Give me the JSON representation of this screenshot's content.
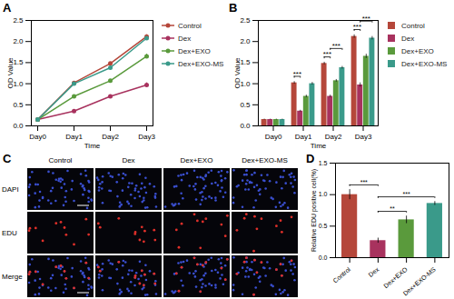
{
  "chart_data": [
    {
      "type": "line",
      "title": "A",
      "x_label": "Time",
      "y_label": "OD Value",
      "categories": [
        "Day0",
        "Day1",
        "Day2",
        "Day3"
      ],
      "ylim": [
        0,
        2.5
      ],
      "yticks": [
        {
          "value": 0,
          "label": "0.0"
        },
        0.5,
        {
          "value": 1,
          "label": "1.0"
        },
        1.5,
        {
          "value": 2,
          "label": "2.0"
        },
        2.5
      ],
      "marker": "circle",
      "legend": "right",
      "series": [
        {
          "name": "Control",
          "color": "#b5473a",
          "values": [
            0.15,
            1.02,
            1.48,
            2.12
          ],
          "errors": [
            0.01,
            0.03,
            0.03,
            0.04
          ]
        },
        {
          "name": "Dex",
          "color": "#a8325e",
          "values": [
            0.15,
            0.35,
            0.7,
            0.97
          ],
          "errors": [
            0.01,
            0.02,
            0.03,
            0.05
          ]
        },
        {
          "name": "Dex+EXO",
          "color": "#5a9a3c",
          "values": [
            0.15,
            0.7,
            1.07,
            1.65
          ],
          "errors": [
            0.01,
            0.03,
            0.03,
            0.05
          ]
        },
        {
          "name": "Dex+EXO-MS",
          "color": "#3a9a8a",
          "values": [
            0.15,
            1.0,
            1.38,
            2.08
          ],
          "errors": [
            0.01,
            0.03,
            0.03,
            0.04
          ]
        }
      ]
    },
    {
      "type": "bar",
      "title": "B",
      "x_label": "Time",
      "y_label": "OD Value",
      "categories": [
        "Day0",
        "Day1",
        "Day2",
        "Day3"
      ],
      "ylim": [
        0,
        2.5
      ],
      "yticks": [
        {
          "value": 0,
          "label": "0.0"
        },
        0.5,
        {
          "value": 1,
          "label": "1.0"
        },
        1.5,
        {
          "value": 2,
          "label": "2.0"
        },
        2.5
      ],
      "legend": "right",
      "series": [
        {
          "name": "Control",
          "color": "#b5473a",
          "values": [
            0.15,
            1.02,
            1.48,
            2.12
          ],
          "errors": [
            0.01,
            0.03,
            0.03,
            0.04
          ]
        },
        {
          "name": "Dex",
          "color": "#a8325e",
          "values": [
            0.15,
            0.35,
            0.7,
            0.97
          ],
          "errors": [
            0.01,
            0.02,
            0.03,
            0.05
          ]
        },
        {
          "name": "Dex+EXO",
          "color": "#5a9a3c",
          "values": [
            0.15,
            0.7,
            1.07,
            1.65
          ],
          "errors": [
            0.01,
            0.03,
            0.03,
            0.05
          ]
        },
        {
          "name": "Dex+EXO-MS",
          "color": "#3a9a8a",
          "values": [
            0.15,
            1.0,
            1.38,
            2.08
          ],
          "errors": [
            0.01,
            0.03,
            0.03,
            0.04
          ]
        }
      ],
      "annotations": [
        {
          "category": "Day1",
          "from": "Control",
          "to": "Dex",
          "label": "***"
        },
        {
          "category": "Day2",
          "from": "Control",
          "to": "Dex",
          "label": "***"
        },
        {
          "category": "Day2",
          "from": "Dex",
          "to": "Dex+EXO-MS",
          "label": "***"
        },
        {
          "category": "Day3",
          "from": "Control",
          "to": "Dex",
          "label": "***"
        },
        {
          "category": "Day3",
          "from": "Dex",
          "to": "Dex+EXO-MS",
          "label": "***"
        }
      ]
    },
    {
      "type": "bar",
      "title": "D",
      "y_label": "Relative EDU positive cell(%)",
      "categories": [
        "Control",
        "Dex",
        "Dex+EXO",
        "Dex+EXO-MS"
      ],
      "values": [
        1.0,
        0.27,
        0.6,
        0.86
      ],
      "errors": [
        0.08,
        0.04,
        0.06,
        0.03
      ],
      "colors": [
        "#b5473a",
        "#a8325e",
        "#5a9a3c",
        "#3a9a8a"
      ],
      "ylim": [
        0,
        1.5
      ],
      "yticks": [
        {
          "value": 0,
          "label": "0.0"
        },
        0.5,
        {
          "value": 1,
          "label": "1.0"
        },
        1.5
      ],
      "annotations": [
        {
          "from": "Dex",
          "to": "Dex+EXO",
          "label": "**"
        },
        {
          "from": "Dex",
          "to": "Dex+EXO-MS",
          "label": "***"
        },
        {
          "from": "Control",
          "to": "Dex",
          "label": "***"
        }
      ]
    }
  ],
  "image_grid": {
    "title": "C",
    "columns": [
      "Control",
      "Dex",
      "Dex+EXO",
      "Dex+EXO-MS"
    ],
    "rows": [
      "DAPI",
      "EDU",
      "Merge"
    ]
  }
}
